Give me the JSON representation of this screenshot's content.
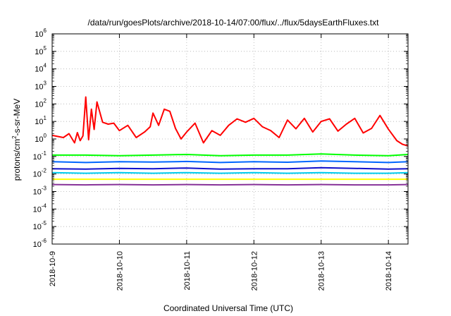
{
  "chart_data": {
    "type": "line",
    "title": "/data/run/goesPlots/archive/2018-10-14/07:00/flux/../flux/5daysEarthFluxes.txt",
    "xlabel": "Coordinated Universal Time (UTC)",
    "ylabel": "protons/cm2-s-sr-MeV",
    "ylabel_parts": {
      "base": "protons/cm",
      "sup": "2",
      "rest": "-s-sr-MeV"
    },
    "yscale": "log",
    "ylim": [
      1e-06,
      1000000.0
    ],
    "y_ticks": [
      {
        "value": 1e-06,
        "base": "10",
        "exp": "-6"
      },
      {
        "value": 1e-05,
        "base": "10",
        "exp": "-5"
      },
      {
        "value": 0.0001,
        "base": "10",
        "exp": "-4"
      },
      {
        "value": 0.001,
        "base": "10",
        "exp": "-3"
      },
      {
        "value": 0.01,
        "base": "10",
        "exp": "-2"
      },
      {
        "value": 0.1,
        "base": "10",
        "exp": "-1"
      },
      {
        "value": 1,
        "base": "10",
        "exp": "0"
      },
      {
        "value": 10,
        "base": "10",
        "exp": "1"
      },
      {
        "value": 100,
        "base": "10",
        "exp": "2"
      },
      {
        "value": 1000,
        "base": "10",
        "exp": "3"
      },
      {
        "value": 10000,
        "base": "10",
        "exp": "4"
      },
      {
        "value": 100000,
        "base": "10",
        "exp": "5"
      },
      {
        "value": 1000000,
        "base": "10",
        "exp": "6"
      }
    ],
    "xlim": [
      "2018-10-09",
      "2018-10-14T07:00"
    ],
    "x_ticks": [
      "2018-10-9",
      "2018-10-10",
      "2018-10-11",
      "2018-10-12",
      "2018-10-13",
      "2018-10-14"
    ],
    "grid": true,
    "series": [
      {
        "color": "#ff0000",
        "x": [
          "2018-10-09T00:00",
          "2018-10-09T04:00",
          "2018-10-09T06:00",
          "2018-10-09T08:00",
          "2018-10-09T09:00",
          "2018-10-09T10:00",
          "2018-10-09T11:00",
          "2018-10-09T12:00",
          "2018-10-09T13:00",
          "2018-10-09T14:00",
          "2018-10-09T15:00",
          "2018-10-09T16:00",
          "2018-10-09T18:00",
          "2018-10-09T20:00",
          "2018-10-09T22:00",
          "2018-10-10T00:00",
          "2018-10-10T03:00",
          "2018-10-10T06:00",
          "2018-10-10T09:00",
          "2018-10-10T11:00",
          "2018-10-10T12:00",
          "2018-10-10T14:00",
          "2018-10-10T16:00",
          "2018-10-10T18:00",
          "2018-10-10T20:00",
          "2018-10-10T22:00",
          "2018-10-11T00:00",
          "2018-10-11T03:00",
          "2018-10-11T06:00",
          "2018-10-11T09:00",
          "2018-10-11T12:00",
          "2018-10-11T15:00",
          "2018-10-11T18:00",
          "2018-10-11T21:00",
          "2018-10-12T00:00",
          "2018-10-12T03:00",
          "2018-10-12T06:00",
          "2018-10-12T09:00",
          "2018-10-12T12:00",
          "2018-10-12T15:00",
          "2018-10-12T18:00",
          "2018-10-12T21:00",
          "2018-10-13T00:00",
          "2018-10-13T03:00",
          "2018-10-13T06:00",
          "2018-10-13T09:00",
          "2018-10-13T12:00",
          "2018-10-13T15:00",
          "2018-10-13T18:00",
          "2018-10-13T21:00",
          "2018-10-14T00:00",
          "2018-10-14T03:00",
          "2018-10-14T05:00",
          "2018-10-14T07:00"
        ],
        "values": [
          1.6,
          1.2,
          2.0,
          0.6,
          2.3,
          0.8,
          1.5,
          250,
          0.9,
          50,
          3.5,
          130,
          9,
          7,
          8,
          3,
          6,
          1.2,
          2.5,
          5,
          30,
          6,
          50,
          38,
          4,
          1.0,
          2.5,
          8,
          0.6,
          3,
          1.6,
          6,
          14,
          9,
          15,
          5,
          3,
          1.2,
          12,
          3.8,
          15,
          2.5,
          10,
          14,
          2.8,
          7,
          15,
          2.2,
          4,
          22,
          3.6,
          0.8,
          0.5,
          0.4
        ]
      },
      {
        "color": "#00ff00",
        "x": [
          "2018-10-09T00:00",
          "2018-10-09T12:00",
          "2018-10-10T00:00",
          "2018-10-10T12:00",
          "2018-10-11T00:00",
          "2018-10-11T12:00",
          "2018-10-12T00:00",
          "2018-10-12T12:00",
          "2018-10-13T00:00",
          "2018-10-13T12:00",
          "2018-10-14T00:00",
          "2018-10-14T07:00"
        ],
        "values": [
          0.12,
          0.12,
          0.11,
          0.12,
          0.13,
          0.11,
          0.12,
          0.12,
          0.14,
          0.12,
          0.11,
          0.13
        ]
      },
      {
        "color": "#0066ff",
        "x": [
          "2018-10-09T00:00",
          "2018-10-09T12:00",
          "2018-10-10T00:00",
          "2018-10-10T12:00",
          "2018-10-11T00:00",
          "2018-10-11T12:00",
          "2018-10-12T00:00",
          "2018-10-12T12:00",
          "2018-10-13T00:00",
          "2018-10-13T12:00",
          "2018-10-14T00:00",
          "2018-10-14T07:00"
        ],
        "values": [
          0.05,
          0.045,
          0.05,
          0.048,
          0.052,
          0.045,
          0.05,
          0.047,
          0.055,
          0.05,
          0.045,
          0.05
        ]
      },
      {
        "color": "#1010cc",
        "x": [
          "2018-10-09T00:00",
          "2018-10-09T12:00",
          "2018-10-10T00:00",
          "2018-10-10T12:00",
          "2018-10-11T00:00",
          "2018-10-11T12:00",
          "2018-10-12T00:00",
          "2018-10-12T12:00",
          "2018-10-13T00:00",
          "2018-10-13T12:00",
          "2018-10-14T00:00",
          "2018-10-14T07:00"
        ],
        "values": [
          0.02,
          0.019,
          0.021,
          0.02,
          0.022,
          0.019,
          0.02,
          0.02,
          0.023,
          0.021,
          0.019,
          0.02
        ]
      },
      {
        "color": "#00ccee",
        "x": [
          "2018-10-09T00:00",
          "2018-10-09T12:00",
          "2018-10-10T00:00",
          "2018-10-10T12:00",
          "2018-10-11T00:00",
          "2018-10-11T12:00",
          "2018-10-12T00:00",
          "2018-10-12T12:00",
          "2018-10-13T00:00",
          "2018-10-13T12:00",
          "2018-10-14T00:00",
          "2018-10-14T07:00"
        ],
        "values": [
          0.012,
          0.011,
          0.012,
          0.011,
          0.012,
          0.011,
          0.012,
          0.011,
          0.012,
          0.011,
          0.011,
          0.012
        ]
      },
      {
        "color": "#ffff00",
        "x": [
          "2018-10-09T00:00",
          "2018-10-09T12:00",
          "2018-10-10T00:00",
          "2018-10-10T12:00",
          "2018-10-11T00:00",
          "2018-10-11T12:00",
          "2018-10-12T00:00",
          "2018-10-12T12:00",
          "2018-10-13T00:00",
          "2018-10-13T12:00",
          "2018-10-14T00:00",
          "2018-10-14T07:00"
        ],
        "values": [
          0.005,
          0.005,
          0.005,
          0.005,
          0.005,
          0.005,
          0.005,
          0.005,
          0.005,
          0.005,
          0.005,
          0.005
        ]
      },
      {
        "color": "#883399",
        "x": [
          "2018-10-09T00:00",
          "2018-10-09T12:00",
          "2018-10-10T00:00",
          "2018-10-10T12:00",
          "2018-10-11T00:00",
          "2018-10-11T12:00",
          "2018-10-12T00:00",
          "2018-10-12T12:00",
          "2018-10-13T00:00",
          "2018-10-13T12:00",
          "2018-10-14T00:00",
          "2018-10-14T07:00"
        ],
        "values": [
          0.0025,
          0.0024,
          0.0025,
          0.0024,
          0.0025,
          0.0024,
          0.0025,
          0.0024,
          0.0025,
          0.0024,
          0.0024,
          0.0025
        ]
      }
    ]
  }
}
